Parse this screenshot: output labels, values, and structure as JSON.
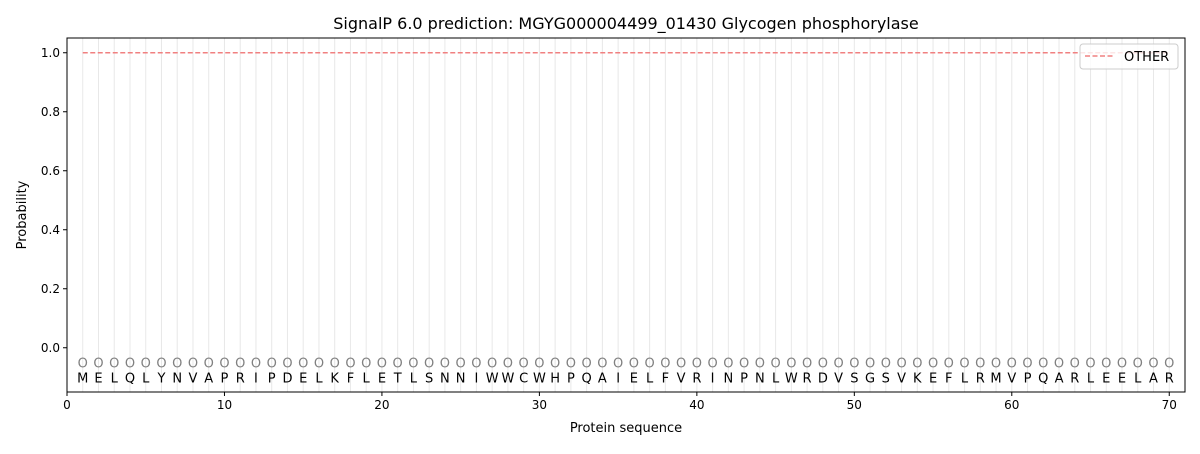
{
  "chart_data": {
    "type": "line",
    "title": "SignalP 6.0 prediction: MGYG000004499_01430 Glycogen phosphorylase",
    "xlabel": "Protein sequence",
    "ylabel": "Probability",
    "xlim": [
      0,
      71
    ],
    "ylim": [
      -0.15,
      1.05
    ],
    "xticks": [
      0,
      10,
      20,
      30,
      40,
      50,
      60,
      70
    ],
    "yticks": [
      "0.0",
      "0.2",
      "0.4",
      "0.6",
      "0.8",
      "1.0"
    ],
    "legend_position": "top-right",
    "sequence": [
      "M",
      "E",
      "L",
      "Q",
      "L",
      "Y",
      "N",
      "V",
      "A",
      "P",
      "R",
      "I",
      "P",
      "D",
      "E",
      "L",
      "K",
      "F",
      "L",
      "E",
      "T",
      "L",
      "S",
      "N",
      "N",
      "I",
      "W",
      "W",
      "C",
      "W",
      "H",
      "P",
      "Q",
      "A",
      "I",
      "E",
      "L",
      "F",
      "V",
      "R",
      "I",
      "N",
      "P",
      "N",
      "L",
      "W",
      "R",
      "D",
      "V",
      "S",
      "G",
      "S",
      "V",
      "K",
      "E",
      "F",
      "L",
      "R",
      "M",
      "V",
      "P",
      "Q",
      "A",
      "R",
      "L",
      "E",
      "E",
      "L",
      "A",
      "R"
    ],
    "predicted_label": "O",
    "series": [
      {
        "name": "OTHER",
        "color": "#f08080",
        "style": "dashed",
        "x_range": [
          1,
          70
        ],
        "value": 1.0
      }
    ]
  }
}
